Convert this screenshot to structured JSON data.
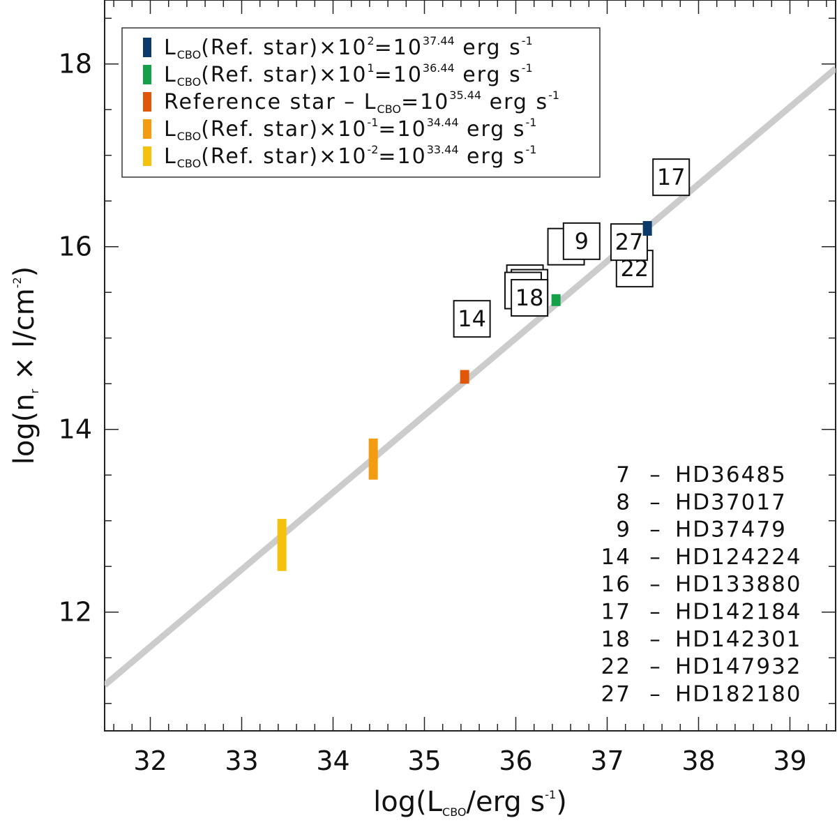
{
  "chart_data": {
    "type": "scatter",
    "xlabel": {
      "prefix": "log(L",
      "sub": "CBO",
      "suffix": "/erg s",
      "sup": "-1",
      "close": ")"
    },
    "ylabel": {
      "prefix": "log(n",
      "sub": "r",
      "middle": " × l/cm",
      "sup": "-2",
      "close": ")"
    },
    "xlim": [
      31.5,
      39.5
    ],
    "ylim": [
      10.7,
      18.7
    ],
    "xticks": [
      32,
      33,
      34,
      35,
      36,
      37,
      38,
      39
    ],
    "yticks": [
      12,
      14,
      16,
      18
    ],
    "fit_line": {
      "x": [
        31.5,
        39.5
      ],
      "y": [
        11.2,
        17.95
      ],
      "color": "#cccccc"
    },
    "series": [
      {
        "name": "L_CBO(Ref. star)x10^2",
        "color": "#0b3a6b",
        "x": 37.44,
        "y_range": [
          16.12,
          16.28
        ]
      },
      {
        "name": "L_CBO(Ref. star)x10^1",
        "color": "#14a04a",
        "x": 36.44,
        "y_range": [
          15.35,
          15.48
        ]
      },
      {
        "name": "Reference star",
        "color": "#e0570a",
        "x": 35.44,
        "y_range": [
          14.5,
          14.65
        ]
      },
      {
        "name": "L_CBO(Ref. star)x10^-1",
        "color": "#f39c12",
        "x": 34.44,
        "y_range": [
          13.45,
          13.9
        ]
      },
      {
        "name": "L_CBO(Ref. star)x10^-2",
        "color": "#f4c20d",
        "x": 33.44,
        "y_range": [
          12.45,
          13.02
        ]
      }
    ],
    "legend": {
      "position": "top-left",
      "entries": [
        {
          "color": "#0b3a6b",
          "pre": "L",
          "sub": "CBO",
          "mid": "(Ref. star)×10",
          "exp": "2",
          "mid2": "=10",
          "exp2": "37.44",
          "post": " erg s",
          "exp3": "-1"
        },
        {
          "color": "#14a04a",
          "pre": "L",
          "sub": "CBO",
          "mid": "(Ref. star)×10",
          "exp": "1",
          "mid2": "=10",
          "exp2": "36.44",
          "post": " erg s",
          "exp3": "-1"
        },
        {
          "color": "#e0570a",
          "pre": "Reference star – L",
          "sub": "CBO",
          "mid": "=10",
          "exp": "35.44",
          "mid2": " erg s",
          "exp2": "-1",
          "post": "",
          "exp3": ""
        },
        {
          "color": "#f39c12",
          "pre": "L",
          "sub": "CBO",
          "mid": "(Ref. star)×10",
          "exp": "-1",
          "mid2": "=10",
          "exp2": "34.44",
          "post": " erg s",
          "exp3": "-1"
        },
        {
          "color": "#f4c20d",
          "pre": "L",
          "sub": "CBO",
          "mid": "(Ref. star)×10",
          "exp": "-2",
          "mid2": "=10",
          "exp2": "33.44",
          "post": " erg s",
          "exp3": "-1"
        }
      ]
    },
    "stars": [
      {
        "label": "7",
        "x": 36.1,
        "y": 15.6,
        "show_label": false
      },
      {
        "label": "8",
        "x": 36.15,
        "y": 15.55,
        "show_label": false
      },
      {
        "label": "9",
        "x": 36.55,
        "y": 16.0,
        "show_label": false
      },
      {
        "label": "9",
        "x": 36.72,
        "y": 16.06,
        "show_label": true
      },
      {
        "label": "14",
        "x": 35.52,
        "y": 15.21,
        "show_label": true
      },
      {
        "label": "16",
        "x": 36.08,
        "y": 15.52,
        "show_label": false
      },
      {
        "label": "17",
        "x": 37.7,
        "y": 16.76,
        "show_label": true
      },
      {
        "label": "18",
        "x": 36.15,
        "y": 15.44,
        "show_label": true
      },
      {
        "label": "22",
        "x": 37.3,
        "y": 15.76,
        "show_label": true
      },
      {
        "label": "27",
        "x": 37.24,
        "y": 16.05,
        "show_label": true
      }
    ],
    "star_key": [
      {
        "num": "7",
        "name": "HD36485"
      },
      {
        "num": "8",
        "name": "HD37017"
      },
      {
        "num": "9",
        "name": "HD37479"
      },
      {
        "num": "14",
        "name": "HD124224"
      },
      {
        "num": "16",
        "name": "HD133880"
      },
      {
        "num": "17",
        "name": "HD142184"
      },
      {
        "num": "18",
        "name": "HD142301"
      },
      {
        "num": "22",
        "name": "HD147932"
      },
      {
        "num": "27",
        "name": "HD182180"
      }
    ]
  }
}
